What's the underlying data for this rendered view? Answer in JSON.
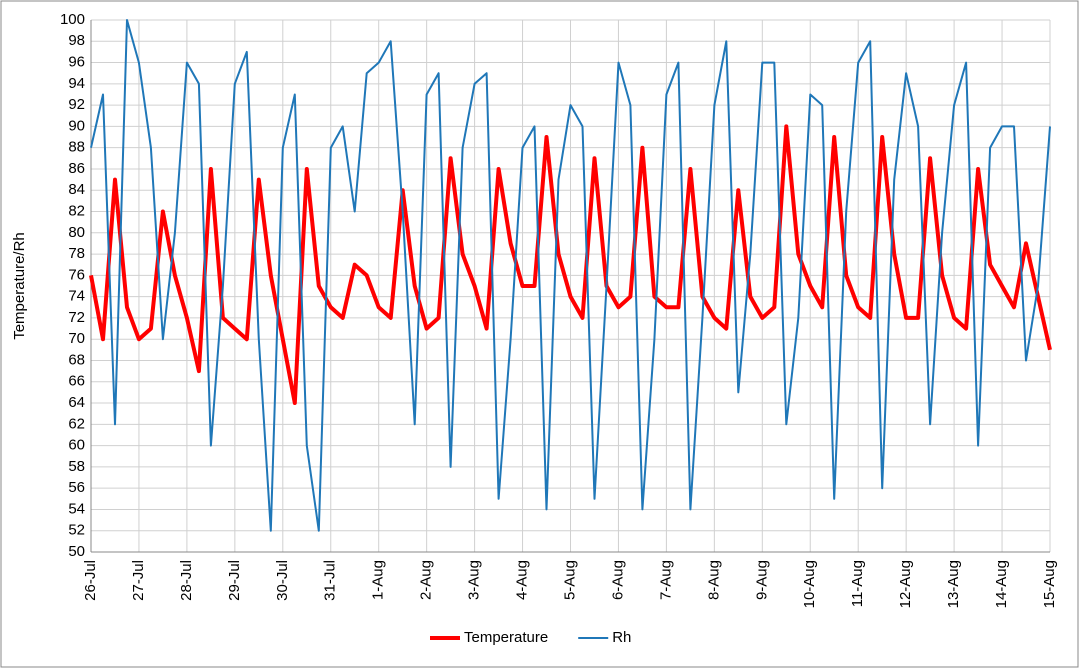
{
  "chart_data": {
    "type": "line",
    "y_label": "Temperature/Rh",
    "x": [
      0,
      0.25,
      0.5,
      0.75,
      1,
      1.25,
      1.5,
      1.75,
      2,
      2.25,
      2.5,
      2.75,
      3,
      3.25,
      3.5,
      3.75,
      4,
      4.25,
      4.5,
      4.75,
      5,
      5.25,
      5.5,
      5.75,
      6,
      6.25,
      6.5,
      6.75,
      7,
      7.25,
      7.5,
      7.75,
      8,
      8.25,
      8.5,
      8.75,
      9,
      9.25,
      9.5,
      9.75,
      10,
      10.25,
      10.5,
      10.75,
      11,
      11.25,
      11.5,
      11.75,
      12,
      12.25,
      12.5,
      12.75,
      13,
      13.25,
      13.5,
      13.75,
      14,
      14.25,
      14.5,
      14.75,
      15,
      15.25,
      15.5,
      15.75,
      16,
      16.25,
      16.5,
      16.75,
      17,
      17.25,
      17.5,
      17.75,
      18,
      18.25,
      18.5,
      18.75,
      19,
      19.25,
      19.5,
      19.75,
      20
    ],
    "series": [
      {
        "name": "Temperature",
        "color": "#ff0000",
        "width": 4,
        "values": [
          76,
          70,
          85,
          73,
          70,
          71,
          82,
          76,
          72,
          67,
          86,
          72,
          71,
          70,
          85,
          76,
          70,
          64,
          86,
          75,
          73,
          72,
          77,
          76,
          73,
          72,
          84,
          75,
          71,
          72,
          87,
          78,
          75,
          71,
          86,
          79,
          75,
          75,
          89,
          78,
          74,
          72,
          87,
          75,
          73,
          74,
          88,
          74,
          73,
          73,
          86,
          74,
          72,
          71,
          84,
          74,
          72,
          73,
          90,
          78,
          75,
          73,
          89,
          76,
          73,
          72,
          89,
          78,
          72,
          72,
          87,
          76,
          72,
          71,
          86,
          77,
          75,
          73,
          79,
          74,
          69
        ]
      },
      {
        "name": "Rh",
        "color": "#1f77b8",
        "width": 2,
        "values": [
          88,
          93,
          62,
          100,
          96,
          88,
          70,
          80,
          96,
          94,
          60,
          75,
          94,
          97,
          70,
          52,
          88,
          93,
          60,
          52,
          88,
          90,
          82,
          95,
          96,
          98,
          82,
          62,
          93,
          95,
          58,
          88,
          94,
          95,
          55,
          70,
          88,
          90,
          54,
          85,
          92,
          90,
          55,
          75,
          96,
          92,
          54,
          70,
          93,
          96,
          54,
          72,
          92,
          98,
          65,
          78,
          96,
          96,
          62,
          72,
          93,
          92,
          55,
          82,
          96,
          98,
          56,
          85,
          95,
          90,
          62,
          80,
          92,
          96,
          60,
          88,
          90,
          90,
          68,
          75,
          90
        ]
      }
    ],
    "xlim": [
      0,
      20
    ],
    "xticks": [
      {
        "value": 0,
        "label": "26-Jul"
      },
      {
        "value": 1,
        "label": "27-Jul"
      },
      {
        "value": 2,
        "label": "28-Jul"
      },
      {
        "value": 3,
        "label": "29-Jul"
      },
      {
        "value": 4,
        "label": "30-Jul"
      },
      {
        "value": 5,
        "label": "31-Jul"
      },
      {
        "value": 6,
        "label": "1-Aug"
      },
      {
        "value": 7,
        "label": "2-Aug"
      },
      {
        "value": 8,
        "label": "3-Aug"
      },
      {
        "value": 9,
        "label": "4-Aug"
      },
      {
        "value": 10,
        "label": "5-Aug"
      },
      {
        "value": 11,
        "label": "6-Aug"
      },
      {
        "value": 12,
        "label": "7-Aug"
      },
      {
        "value": 13,
        "label": "8-Aug"
      },
      {
        "value": 14,
        "label": "9-Aug"
      },
      {
        "value": 15,
        "label": "10-Aug"
      },
      {
        "value": 16,
        "label": "11-Aug"
      },
      {
        "value": 17,
        "label": "12-Aug"
      },
      {
        "value": 18,
        "label": "13-Aug"
      },
      {
        "value": 19,
        "label": "14-Aug"
      },
      {
        "value": 20,
        "label": "15-Aug"
      }
    ],
    "ylim": [
      50,
      100
    ],
    "yticks": [
      50,
      52,
      54,
      56,
      58,
      60,
      62,
      64,
      66,
      68,
      70,
      72,
      74,
      76,
      78,
      80,
      82,
      84,
      86,
      88,
      90,
      92,
      94,
      96,
      98,
      100
    ],
    "grid": true,
    "legend": "bottom"
  }
}
